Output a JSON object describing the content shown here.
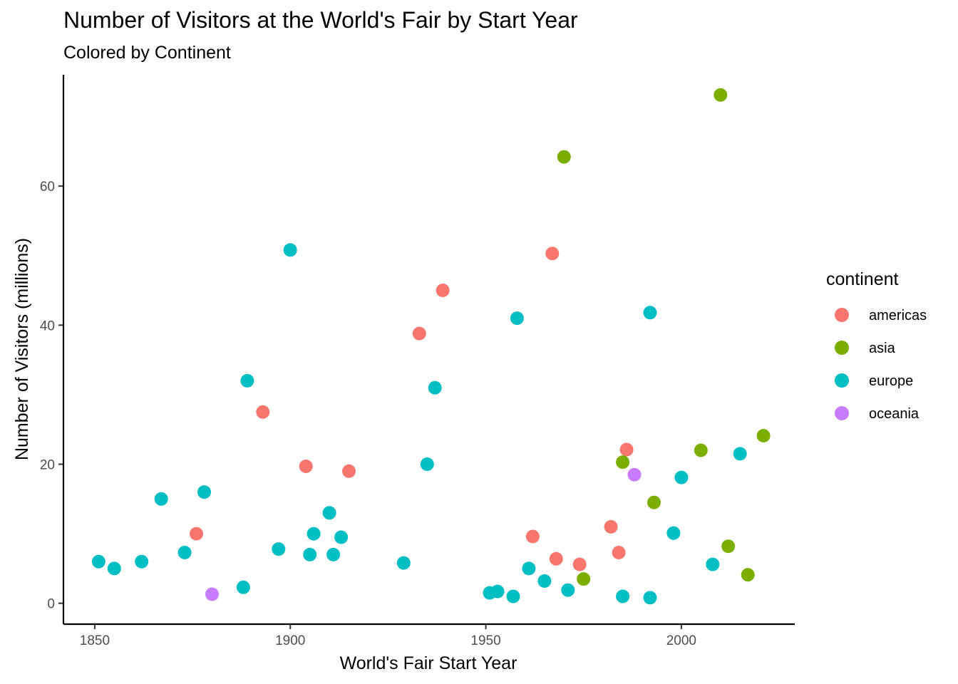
{
  "chart_data": {
    "type": "scatter",
    "title": "Number of Visitors at the World's Fair by Start Year",
    "subtitle": "Colored by Continent",
    "xlabel": "World's Fair Start Year",
    "ylabel": "Number of Visitors (millions)",
    "xlim": [
      1842,
      2029
    ],
    "ylim": [
      -3,
      76
    ],
    "x_ticks": [
      1850,
      1900,
      1950,
      2000
    ],
    "y_ticks": [
      0,
      20,
      40,
      60
    ],
    "grid": false,
    "legend": {
      "title": "continent",
      "position": "right",
      "entries": [
        "americas",
        "asia",
        "europe",
        "oceania"
      ]
    },
    "series": [
      {
        "name": "americas",
        "color": "#F8766D",
        "points": [
          {
            "x": 1876,
            "y": 10
          },
          {
            "x": 1893,
            "y": 27.5
          },
          {
            "x": 1904,
            "y": 19.7
          },
          {
            "x": 1915,
            "y": 19
          },
          {
            "x": 1933,
            "y": 38.8
          },
          {
            "x": 1939,
            "y": 45
          },
          {
            "x": 1962,
            "y": 9.6
          },
          {
            "x": 1967,
            "y": 50.3
          },
          {
            "x": 1968,
            "y": 6.4
          },
          {
            "x": 1974,
            "y": 5.6
          },
          {
            "x": 1982,
            "y": 11
          },
          {
            "x": 1984,
            "y": 7.3
          },
          {
            "x": 1986,
            "y": 22.1
          }
        ]
      },
      {
        "name": "asia",
        "color": "#7CAE00",
        "points": [
          {
            "x": 1970,
            "y": 64.2
          },
          {
            "x": 1975,
            "y": 3.5
          },
          {
            "x": 1985,
            "y": 20.3
          },
          {
            "x": 1993,
            "y": 14.5
          },
          {
            "x": 2005,
            "y": 22
          },
          {
            "x": 2010,
            "y": 73.1
          },
          {
            "x": 2012,
            "y": 8.2
          },
          {
            "x": 2017,
            "y": 4.1
          },
          {
            "x": 2021,
            "y": 24.1
          }
        ]
      },
      {
        "name": "europe",
        "color": "#00BFC4",
        "points": [
          {
            "x": 1851,
            "y": 6
          },
          {
            "x": 1855,
            "y": 5
          },
          {
            "x": 1862,
            "y": 6
          },
          {
            "x": 1867,
            "y": 15
          },
          {
            "x": 1873,
            "y": 7.3
          },
          {
            "x": 1878,
            "y": 16
          },
          {
            "x": 1888,
            "y": 2.3
          },
          {
            "x": 1889,
            "y": 32
          },
          {
            "x": 1897,
            "y": 7.8
          },
          {
            "x": 1900,
            "y": 50.8
          },
          {
            "x": 1905,
            "y": 7
          },
          {
            "x": 1906,
            "y": 10
          },
          {
            "x": 1910,
            "y": 13
          },
          {
            "x": 1911,
            "y": 7
          },
          {
            "x": 1913,
            "y": 9.5
          },
          {
            "x": 1929,
            "y": 5.8
          },
          {
            "x": 1935,
            "y": 20
          },
          {
            "x": 1937,
            "y": 31
          },
          {
            "x": 1951,
            "y": 1.5
          },
          {
            "x": 1953,
            "y": 1.7
          },
          {
            "x": 1957,
            "y": 1
          },
          {
            "x": 1958,
            "y": 41
          },
          {
            "x": 1961,
            "y": 5
          },
          {
            "x": 1965,
            "y": 3.2
          },
          {
            "x": 1971,
            "y": 1.9
          },
          {
            "x": 1985,
            "y": 1
          },
          {
            "x": 1992,
            "y": 41.8
          },
          {
            "x": 1992,
            "y": 0.8
          },
          {
            "x": 1998,
            "y": 10.1
          },
          {
            "x": 2000,
            "y": 18.1
          },
          {
            "x": 2008,
            "y": 5.6
          },
          {
            "x": 2015,
            "y": 21.5
          }
        ]
      },
      {
        "name": "oceania",
        "color": "#C77CFF",
        "points": [
          {
            "x": 1880,
            "y": 1.3
          },
          {
            "x": 1988,
            "y": 18.5
          }
        ]
      }
    ]
  }
}
